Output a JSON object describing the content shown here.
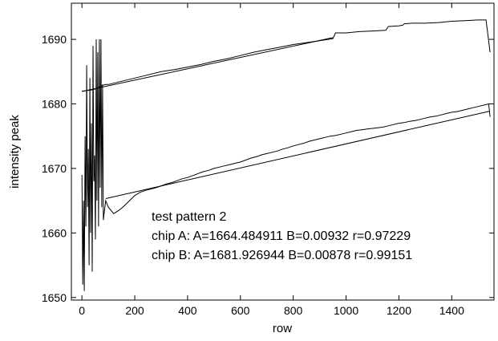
{
  "chart_data": {
    "type": "line",
    "xlabel": "row",
    "ylabel": "intensity peak",
    "xlim": [
      -40,
      1560
    ],
    "ylim": [
      1649.6,
      1695.6
    ],
    "x_ticks": [
      0,
      200,
      400,
      600,
      800,
      1000,
      1200,
      1400
    ],
    "y_ticks": [
      1650,
      1660,
      1670,
      1680,
      1690
    ],
    "grid": false,
    "legend": "none",
    "annotations": [
      "test pattern 2",
      "chip A: A=1664.484911  B=0.00932  r=0.97229",
      "chip B: A=1681.926944  B=0.00878  r=0.99151"
    ],
    "series": [
      {
        "x": [
          0,
          3,
          6,
          9,
          12,
          15,
          18,
          21,
          24,
          27,
          30,
          33,
          36,
          39,
          42,
          45,
          48,
          51,
          54,
          57,
          60,
          63,
          66,
          69,
          72,
          75,
          78,
          81,
          84,
          87,
          90,
          100,
          120,
          140,
          160,
          180,
          200,
          220,
          240,
          260,
          280,
          300,
          320,
          340,
          360,
          380,
          400,
          420,
          440,
          460,
          480,
          500,
          520,
          540,
          560,
          580,
          600,
          620,
          640,
          660,
          680,
          700,
          720,
          740,
          760,
          780,
          800,
          820,
          840,
          860,
          880,
          900,
          920,
          940,
          960,
          980,
          1000,
          1020,
          1040,
          1060,
          1080,
          1100,
          1120,
          1140,
          1160,
          1180,
          1200,
          1220,
          1240,
          1260,
          1280,
          1300,
          1320,
          1340,
          1360,
          1380,
          1400,
          1420,
          1440,
          1460,
          1480,
          1500,
          1520,
          1540,
          1545
        ],
        "values": [
          1669,
          1652,
          1665,
          1651,
          1675,
          1661,
          1686,
          1664,
          1673,
          1655,
          1684,
          1660,
          1677,
          1654,
          1689,
          1668,
          1672,
          1659,
          1690,
          1665,
          1688,
          1661,
          1690,
          1667,
          1690,
          1664,
          1683,
          1662,
          1663,
          1664,
          1665,
          1664,
          1663,
          1663.5,
          1664.2,
          1665,
          1665.8,
          1666.3,
          1666.6,
          1666.8,
          1667,
          1667.3,
          1667.6,
          1667.8,
          1668.1,
          1668.4,
          1668.6,
          1668.9,
          1669.2,
          1669.5,
          1669.7,
          1670,
          1670.2,
          1670.4,
          1670.6,
          1670.8,
          1671,
          1671.3,
          1671.6,
          1671.8,
          1672.1,
          1672.3,
          1672.5,
          1672.7,
          1673,
          1673.2,
          1673.5,
          1673.7,
          1673.9,
          1674.2,
          1674.4,
          1674.6,
          1674.8,
          1675,
          1675.1,
          1675.3,
          1675.5,
          1675.7,
          1675.9,
          1676,
          1676.1,
          1676.2,
          1676.3,
          1676.4,
          1676.6,
          1676.8,
          1677,
          1677.1,
          1677.3,
          1677.4,
          1677.6,
          1677.8,
          1678,
          1678.1,
          1678.3,
          1678.5,
          1678.7,
          1678.8,
          1679,
          1679.2,
          1679.4,
          1679.6,
          1679.8,
          1680,
          1678
        ]
      },
      {
        "x": [
          0,
          10,
          20,
          30,
          40,
          50,
          60,
          70,
          80,
          90,
          100,
          150,
          200,
          250,
          300,
          350,
          400,
          450,
          500,
          550,
          600,
          650,
          700,
          750,
          800,
          850,
          900,
          950,
          960,
          1000,
          1050,
          1100,
          1150,
          1160,
          1200,
          1215,
          1220,
          1250,
          1300,
          1350,
          1400,
          1450,
          1500,
          1530,
          1545
        ],
        "values": [
          1682,
          1682,
          1682.1,
          1682.1,
          1682.2,
          1682.3,
          1682.5,
          1682.7,
          1682.9,
          1683,
          1683,
          1683.5,
          1684,
          1684.5,
          1685,
          1685.3,
          1685.7,
          1686.1,
          1686.6,
          1687,
          1687.5,
          1688,
          1688.4,
          1688.8,
          1689.2,
          1689.5,
          1689.8,
          1690.1,
          1691,
          1691,
          1691.2,
          1691.3,
          1691.4,
          1692,
          1692.1,
          1692.2,
          1692.4,
          1692.5,
          1692.5,
          1692.6,
          1692.8,
          1692.9,
          1693,
          1693,
          1688
        ]
      }
    ],
    "fit_lines": [
      {
        "A": 1664.484911,
        "B": 0.00932,
        "x_range": [
          90,
          1545
        ]
      },
      {
        "A": 1681.926944,
        "B": 0.00878,
        "x_range": [
          0,
          950
        ]
      }
    ]
  }
}
